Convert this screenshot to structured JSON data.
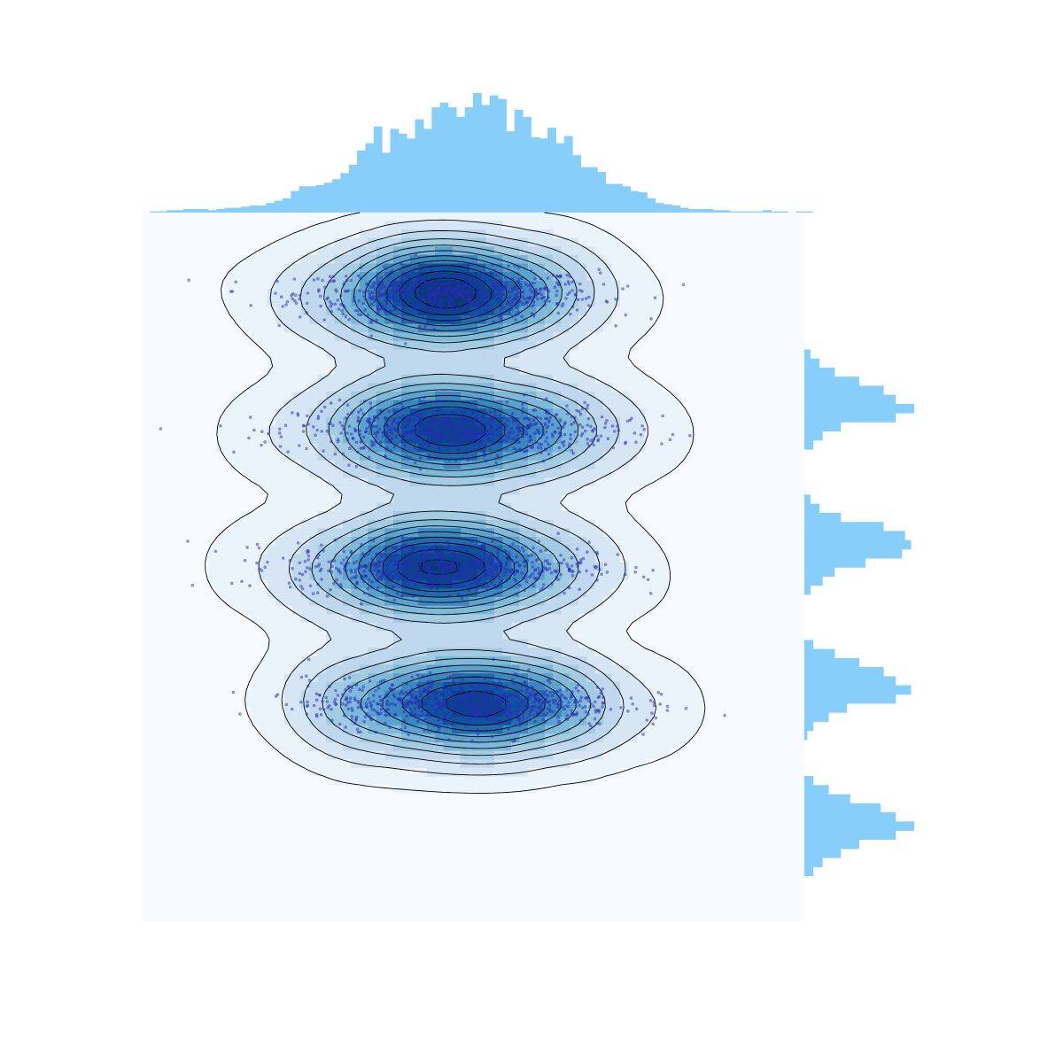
{
  "colors": {
    "background": "#ffffff",
    "joint_background": "#f7fbff",
    "marginal_fill": "#87cefa",
    "scatter_points": "#2a2ab8",
    "contour_line": "#000000",
    "density_levels": [
      "#ebf3fb",
      "#d6e6f4",
      "#bfd8ed",
      "#a3cce3",
      "#7fb9da",
      "#5aa2cf",
      "#3b87c0",
      "#2269ad",
      "#0e52a0",
      "#08458a",
      "#083a7a"
    ]
  },
  "chart_data": {
    "type": "jointplot",
    "kinds": [
      "kde-filled",
      "kde-contour",
      "scatter",
      "histogram"
    ],
    "title": "",
    "xlabel": "",
    "ylabel": "",
    "axes_visible": false,
    "grid": false,
    "legend": "none",
    "x_range": [
      -3.5,
      4.5
    ],
    "y_range": [
      -0.6,
      4.6
    ],
    "clusters": [
      {
        "y_center": 4.0,
        "y_spread": 0.09,
        "x_center": 0.2,
        "x_spread": 0.9,
        "count": 700
      },
      {
        "y_center": 3.0,
        "y_spread": 0.09,
        "x_center": 0.3,
        "x_spread": 0.95,
        "count": 700
      },
      {
        "y_center": 2.0,
        "y_spread": 0.09,
        "x_center": 0.1,
        "x_spread": 0.9,
        "count": 700
      },
      {
        "y_center": 1.0,
        "y_spread": 0.09,
        "x_center": 0.4,
        "x_spread": 0.95,
        "count": 700
      }
    ],
    "top_histogram": {
      "bin_edges_start": -3.4,
      "bin_width": 0.1,
      "counts": [
        1,
        1,
        2,
        2,
        3,
        3,
        3,
        2,
        3,
        4,
        4,
        5,
        6,
        6,
        8,
        10,
        12,
        18,
        22,
        22,
        23,
        25,
        28,
        33,
        40,
        52,
        58,
        72,
        50,
        70,
        66,
        62,
        78,
        70,
        88,
        92,
        88,
        80,
        88,
        100,
        90,
        98,
        95,
        68,
        86,
        80,
        63,
        62,
        71,
        58,
        64,
        48,
        38,
        38,
        34,
        24,
        24,
        22,
        18,
        17,
        12,
        8,
        7,
        6,
        4,
        3,
        3,
        3,
        2,
        2,
        1,
        1,
        1,
        1,
        2,
        1,
        1,
        0,
        1,
        1
      ]
    },
    "right_histogram": {
      "bin_edges_start": -0.6,
      "bin_width": 0.0666,
      "counts": [
        0,
        0,
        0,
        0,
        0,
        3,
        6,
        12,
        18,
        30,
        36,
        30,
        25,
        15,
        8,
        3,
        0,
        0,
        0,
        0,
        1,
        3,
        8,
        14,
        30,
        35,
        30,
        26,
        18,
        10,
        3,
        0,
        0,
        0,
        0,
        0,
        2,
        6,
        10,
        20,
        32,
        35,
        33,
        26,
        12,
        5,
        2,
        0,
        0,
        0,
        0,
        0,
        3,
        6,
        12,
        30,
        36,
        30,
        26,
        18,
        10,
        5,
        2,
        0,
        0,
        0,
        0,
        0,
        0,
        0,
        0,
        0,
        0,
        0,
        0,
        0,
        0,
        0
      ]
    }
  }
}
